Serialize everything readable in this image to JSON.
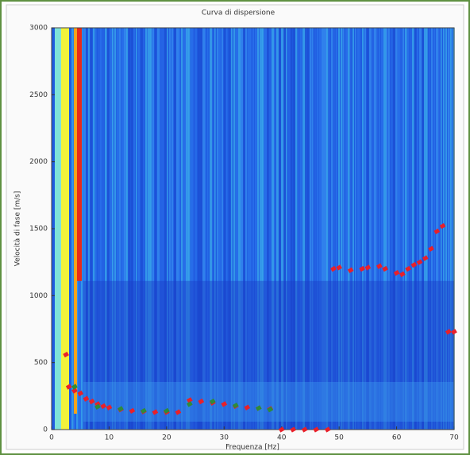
{
  "chart_data": {
    "type": "scatter",
    "title": "Curva di dispersione",
    "x_label": "Frequenza [Hz]",
    "y_label": "Velocità di fase [m/s]",
    "xlim": [
      0,
      70
    ],
    "ylim": [
      0,
      3000
    ],
    "xticks": [
      0,
      10,
      20,
      30,
      40,
      50,
      60,
      70
    ],
    "yticks": [
      0,
      500,
      1000,
      1500,
      2000,
      2500,
      3000
    ],
    "series": [
      {
        "color": "#e8202a",
        "x": [
          2.5,
          3,
          4,
          5,
          6,
          7,
          8,
          9,
          10,
          12,
          14,
          16,
          18,
          20,
          22,
          24,
          26,
          28,
          30,
          32,
          34,
          36,
          38,
          40,
          42,
          44,
          46,
          48,
          49,
          50,
          52,
          54,
          55,
          57,
          58,
          60,
          61,
          62,
          63,
          64,
          65,
          66,
          67,
          68,
          69,
          70
        ],
        "values": [
          560,
          320,
          290,
          270,
          230,
          210,
          190,
          175,
          165,
          150,
          140,
          135,
          130,
          130,
          130,
          220,
          210,
          200,
          190,
          175,
          165,
          160,
          155,
          0,
          0,
          0,
          0,
          0,
          1200,
          1210,
          1190,
          1200,
          1210,
          1220,
          1200,
          1170,
          1160,
          1200,
          1230,
          1250,
          1280,
          1350,
          1480,
          1520,
          730,
          730
        ]
      },
      {
        "color": "#2e8b3a",
        "x": [
          4,
          8,
          12,
          16,
          20,
          24,
          28,
          32,
          36,
          38
        ],
        "values": [
          320,
          170,
          155,
          140,
          140,
          190,
          210,
          180,
          160,
          150
        ]
      }
    ]
  }
}
